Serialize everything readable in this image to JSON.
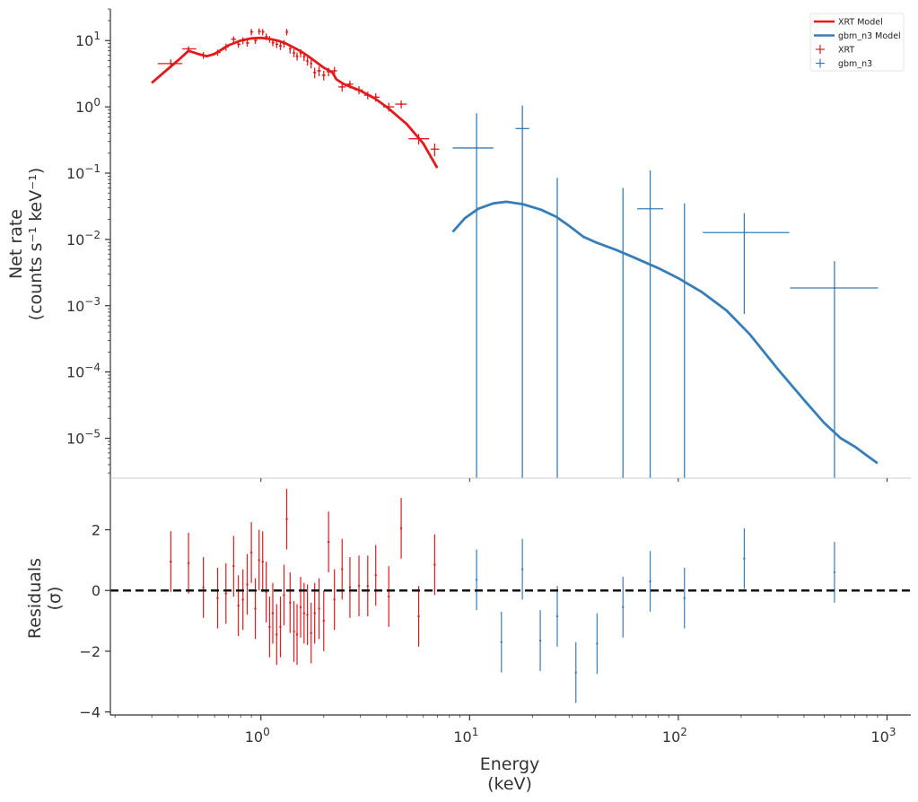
{
  "chart_data": {
    "type": "scatter",
    "x_scale": "log",
    "xlim": [
      0.19,
      1300
    ],
    "xlabel_line1": "Energy",
    "xlabel_line2": "(keV)",
    "x_ticks": [
      {
        "value": 1,
        "base": "10",
        "exp": "0"
      },
      {
        "value": 10,
        "base": "10",
        "exp": "1"
      },
      {
        "value": 100,
        "base": "10",
        "exp": "2"
      },
      {
        "value": 1000,
        "base": "10",
        "exp": "3"
      }
    ],
    "top_panel": {
      "y_scale": "log",
      "ylim": [
        2.5e-06,
        30
      ],
      "ylabel_line1": "Net rate",
      "ylabel_line2": "(counts s⁻¹ keV⁻¹)",
      "y_ticks": [
        {
          "value": 10,
          "base": "10",
          "exp": "1"
        },
        {
          "value": 1,
          "base": "10",
          "exp": "0"
        },
        {
          "value": 0.1,
          "base": "10",
          "exp": "−1"
        },
        {
          "value": 0.01,
          "base": "10",
          "exp": "−2"
        },
        {
          "value": 0.001,
          "base": "10",
          "exp": "−3"
        },
        {
          "value": 0.0001,
          "base": "10",
          "exp": "−4"
        },
        {
          "value": 1e-05,
          "base": "10",
          "exp": "−5"
        }
      ]
    },
    "bottom_panel": {
      "y_scale": "linear",
      "ylim": [
        -4.1,
        3.7
      ],
      "ylabel_line1": "Residuals",
      "ylabel_line2": "(σ)",
      "y_ticks": [
        {
          "value": 2,
          "label": "2"
        },
        {
          "value": 0,
          "label": "0"
        },
        {
          "value": -2,
          "label": "−2"
        },
        {
          "value": -4,
          "label": "−4"
        }
      ],
      "reference_line": 0
    },
    "legend": {
      "placement": "top-right",
      "entries": [
        {
          "label": "XRT Model",
          "kind": "line",
          "color": "#e31a1c"
        },
        {
          "label": "gbm_n3 Model",
          "kind": "line",
          "color": "#377eb8"
        },
        {
          "label": "XRT",
          "kind": "marker",
          "color": "#e31a1c"
        },
        {
          "label": "gbm_n3",
          "kind": "marker",
          "color": "#377eb8"
        }
      ]
    },
    "series": [
      {
        "name": "XRT Model",
        "kind": "model",
        "color": "#e31a1c",
        "x": [
          0.3,
          0.35,
          0.4,
          0.45,
          0.5,
          0.55,
          0.6,
          0.7,
          0.8,
          0.9,
          1.0,
          1.1,
          1.2,
          1.3,
          1.4,
          1.5,
          1.6,
          1.7,
          1.8,
          1.9,
          2.0,
          2.1,
          2.2,
          2.3,
          2.5,
          2.7,
          3.0,
          3.5,
          4.0,
          5.0,
          6.0,
          7.0
        ],
        "y": [
          2.3,
          3.5,
          5.0,
          7.0,
          6.3,
          5.8,
          6.3,
          8.5,
          10.0,
          10.8,
          11.0,
          10.6,
          10.0,
          9.2,
          8.2,
          7.3,
          6.5,
          5.7,
          5.0,
          4.4,
          3.9,
          3.6,
          3.3,
          2.6,
          2.2,
          2.0,
          1.75,
          1.35,
          1.0,
          0.55,
          0.28,
          0.12
        ]
      },
      {
        "name": "gbm_n3 Model",
        "kind": "model",
        "color": "#377eb8",
        "x": [
          8.3,
          9.5,
          11,
          13,
          15,
          18,
          22,
          26,
          30,
          35,
          40,
          50,
          60,
          80,
          100,
          130,
          170,
          220,
          300,
          400,
          500,
          600,
          700,
          800,
          900
        ],
        "y": [
          0.013,
          0.021,
          0.029,
          0.035,
          0.037,
          0.034,
          0.028,
          0.022,
          0.016,
          0.011,
          0.0091,
          0.007,
          0.0055,
          0.0037,
          0.0026,
          0.0016,
          0.00085,
          0.00037,
          0.00011,
          3.8e-05,
          1.7e-05,
          1e-05,
          7.5e-06,
          5.5e-06,
          4.2e-06
        ]
      },
      {
        "name": "XRT",
        "kind": "data",
        "color": "#e31a1c",
        "points": [
          {
            "x": 0.37,
            "xlo": 0.32,
            "xhi": 0.42,
            "y": 4.5,
            "ylo": 3.8,
            "yhi": 5.2,
            "r": 0.95,
            "rerr": 1.0
          },
          {
            "x": 0.45,
            "xlo": 0.42,
            "xhi": 0.49,
            "y": 7.5,
            "ylo": 6.8,
            "yhi": 8.2,
            "r": 0.9,
            "rerr": 1.0
          },
          {
            "x": 0.53,
            "xlo": 0.51,
            "xhi": 0.55,
            "y": 6.0,
            "ylo": 5.3,
            "yhi": 6.7,
            "r": 0.1,
            "rerr": 1.0
          },
          {
            "x": 0.62,
            "xlo": 0.6,
            "xhi": 0.64,
            "y": 6.6,
            "ylo": 5.9,
            "yhi": 7.3,
            "r": -0.25,
            "rerr": 1.0
          },
          {
            "x": 0.68,
            "xlo": 0.66,
            "xhi": 0.7,
            "y": 8.0,
            "ylo": 7.0,
            "yhi": 9.0,
            "r": -0.1,
            "rerr": 1.0
          },
          {
            "x": 0.74,
            "xlo": 0.72,
            "xhi": 0.76,
            "y": 10.5,
            "ylo": 9.4,
            "yhi": 11.6,
            "r": 0.8,
            "rerr": 1.0
          },
          {
            "x": 0.78,
            "xlo": 0.77,
            "xhi": 0.8,
            "y": 8.8,
            "ylo": 7.8,
            "yhi": 9.8,
            "r": -0.5,
            "rerr": 1.0
          },
          {
            "x": 0.82,
            "xlo": 0.81,
            "xhi": 0.84,
            "y": 10.0,
            "ylo": 8.8,
            "yhi": 11.2,
            "r": -0.3,
            "rerr": 1.0
          },
          {
            "x": 0.86,
            "xlo": 0.85,
            "xhi": 0.88,
            "y": 9.2,
            "ylo": 8.1,
            "yhi": 10.3,
            "r": 0.2,
            "rerr": 1.0
          },
          {
            "x": 0.9,
            "xlo": 0.89,
            "xhi": 0.92,
            "y": 13.5,
            "ylo": 12.0,
            "yhi": 15.0,
            "r": 1.25,
            "rerr": 1.0
          },
          {
            "x": 0.94,
            "xlo": 0.93,
            "xhi": 0.96,
            "y": 10.0,
            "ylo": 8.9,
            "yhi": 11.1,
            "r": -0.6,
            "rerr": 1.0
          },
          {
            "x": 0.98,
            "xlo": 0.97,
            "xhi": 1.0,
            "y": 13.8,
            "ylo": 12.3,
            "yhi": 15.3,
            "r": 1.0,
            "rerr": 1.0
          },
          {
            "x": 1.02,
            "xlo": 1.01,
            "xhi": 1.04,
            "y": 13.5,
            "ylo": 12.0,
            "yhi": 15.0,
            "r": 0.95,
            "rerr": 1.0
          },
          {
            "x": 1.06,
            "xlo": 1.05,
            "xhi": 1.08,
            "y": 11.5,
            "ylo": 10.2,
            "yhi": 12.8,
            "r": -0.05,
            "rerr": 1.0
          },
          {
            "x": 1.1,
            "xlo": 1.09,
            "xhi": 1.12,
            "y": 10.5,
            "ylo": 9.3,
            "yhi": 11.7,
            "r": -1.2,
            "rerr": 1.0
          },
          {
            "x": 1.14,
            "xlo": 1.13,
            "xhi": 1.16,
            "y": 9.3,
            "ylo": 8.2,
            "yhi": 10.4,
            "r": -0.75,
            "rerr": 1.0
          },
          {
            "x": 1.19,
            "xlo": 1.18,
            "xhi": 1.21,
            "y": 8.8,
            "ylo": 7.7,
            "yhi": 9.9,
            "r": -1.45,
            "rerr": 1.0
          },
          {
            "x": 1.24,
            "xlo": 1.22,
            "xhi": 1.26,
            "y": 8.3,
            "ylo": 7.2,
            "yhi": 9.4,
            "r": -1.2,
            "rerr": 1.0
          },
          {
            "x": 1.29,
            "xlo": 1.27,
            "xhi": 1.31,
            "y": 9.0,
            "ylo": 7.8,
            "yhi": 10.2,
            "r": -0.15,
            "rerr": 1.0
          },
          {
            "x": 1.33,
            "xlo": 1.32,
            "xhi": 1.35,
            "y": 13.5,
            "ylo": 12.0,
            "yhi": 15.0,
            "r": 2.35,
            "rerr": 1.0
          },
          {
            "x": 1.38,
            "xlo": 1.37,
            "xhi": 1.4,
            "y": 7.5,
            "ylo": 6.4,
            "yhi": 8.6,
            "r": -0.4,
            "rerr": 1.0
          },
          {
            "x": 1.44,
            "xlo": 1.42,
            "xhi": 1.46,
            "y": 6.5,
            "ylo": 5.6,
            "yhi": 7.4,
            "r": -1.35,
            "rerr": 1.0
          },
          {
            "x": 1.49,
            "xlo": 1.47,
            "xhi": 1.51,
            "y": 5.8,
            "ylo": 5.0,
            "yhi": 6.6,
            "r": -1.45,
            "rerr": 1.0
          },
          {
            "x": 1.55,
            "xlo": 1.53,
            "xhi": 1.57,
            "y": 6.5,
            "ylo": 5.6,
            "yhi": 7.4,
            "r": -0.55,
            "rerr": 1.0
          },
          {
            "x": 1.61,
            "xlo": 1.59,
            "xhi": 1.63,
            "y": 5.7,
            "ylo": 4.9,
            "yhi": 6.5,
            "r": -0.75,
            "rerr": 1.0
          },
          {
            "x": 1.67,
            "xlo": 1.65,
            "xhi": 1.69,
            "y": 4.9,
            "ylo": 4.2,
            "yhi": 5.6,
            "r": -0.8,
            "rerr": 1.0
          },
          {
            "x": 1.74,
            "xlo": 1.72,
            "xhi": 1.76,
            "y": 4.5,
            "ylo": 3.8,
            "yhi": 5.2,
            "r": -1.4,
            "rerr": 1.0
          },
          {
            "x": 1.81,
            "xlo": 1.78,
            "xhi": 1.84,
            "y": 3.3,
            "ylo": 2.7,
            "yhi": 3.9,
            "r": -0.75,
            "rerr": 1.0
          },
          {
            "x": 1.9,
            "xlo": 1.86,
            "xhi": 1.94,
            "y": 3.5,
            "ylo": 2.9,
            "yhi": 4.1,
            "r": -0.6,
            "rerr": 1.0
          },
          {
            "x": 2.0,
            "xlo": 1.96,
            "xhi": 2.04,
            "y": 3.0,
            "ylo": 2.5,
            "yhi": 3.5,
            "r": -1.0,
            "rerr": 1.0
          },
          {
            "x": 2.11,
            "xlo": 2.06,
            "xhi": 2.16,
            "y": 3.4,
            "ylo": 2.9,
            "yhi": 3.9,
            "r": 1.6,
            "rerr": 1.0
          },
          {
            "x": 2.25,
            "xlo": 2.18,
            "xhi": 2.32,
            "y": 3.5,
            "ylo": 3.0,
            "yhi": 4.0,
            "r": -0.3,
            "rerr": 1.0
          },
          {
            "x": 2.45,
            "xlo": 2.35,
            "xhi": 2.55,
            "y": 2.0,
            "ylo": 1.7,
            "yhi": 2.3,
            "r": 0.7,
            "rerr": 1.0
          },
          {
            "x": 2.67,
            "xlo": 2.58,
            "xhi": 2.77,
            "y": 2.2,
            "ylo": 1.9,
            "yhi": 2.5,
            "r": 0.1,
            "rerr": 1.0
          },
          {
            "x": 2.95,
            "xlo": 2.82,
            "xhi": 3.08,
            "y": 1.8,
            "ylo": 1.55,
            "yhi": 2.05,
            "r": 0.15,
            "rerr": 1.0
          },
          {
            "x": 3.25,
            "xlo": 3.12,
            "xhi": 3.38,
            "y": 1.5,
            "ylo": 1.3,
            "yhi": 1.7,
            "r": 0.15,
            "rerr": 1.0
          },
          {
            "x": 3.55,
            "xlo": 3.42,
            "xhi": 3.7,
            "y": 1.4,
            "ylo": 1.2,
            "yhi": 1.6,
            "r": 0.5,
            "rerr": 1.0
          },
          {
            "x": 4.1,
            "xlo": 3.85,
            "xhi": 4.35,
            "y": 1.0,
            "ylo": 0.85,
            "yhi": 1.15,
            "r": -0.2,
            "rerr": 1.0
          },
          {
            "x": 4.7,
            "xlo": 4.4,
            "xhi": 5.0,
            "y": 1.1,
            "ylo": 0.95,
            "yhi": 1.25,
            "r": 2.05,
            "rerr": 1.0
          },
          {
            "x": 5.7,
            "xlo": 5.1,
            "xhi": 6.4,
            "y": 0.33,
            "ylo": 0.27,
            "yhi": 0.39,
            "r": -0.85,
            "rerr": 1.0
          },
          {
            "x": 6.8,
            "xlo": 6.5,
            "xhi": 7.15,
            "y": 0.23,
            "ylo": 0.18,
            "yhi": 0.28,
            "r": 0.85,
            "rerr": 1.0
          }
        ]
      },
      {
        "name": "gbm_n3",
        "kind": "data",
        "color": "#377eb8",
        "points": [
          {
            "x": 10.8,
            "xlo": 8.3,
            "xhi": 13.0,
            "y": 0.24,
            "ylo": 1e-07,
            "yhi": 0.8,
            "r": 0.35,
            "rerr": 1.0
          },
          {
            "x": 14.2,
            "xlo": 14.2,
            "xhi": 14.2,
            "y": null,
            "ylo": null,
            "yhi": null,
            "r": -1.7,
            "rerr": 1.0
          },
          {
            "x": 17.9,
            "xlo": 16.6,
            "xhi": 19.3,
            "y": 0.47,
            "ylo": 1e-07,
            "yhi": 1.05,
            "r": 0.7,
            "rerr": 1.0
          },
          {
            "x": 21.8,
            "xlo": 21.8,
            "xhi": 21.8,
            "y": null,
            "ylo": null,
            "yhi": null,
            "r": -1.65,
            "rerr": 1.0
          },
          {
            "x": 26.3,
            "xlo": 26.3,
            "xhi": 26.3,
            "y": null,
            "ylo": 1e-07,
            "yhi": 0.085,
            "r": -0.85,
            "rerr": 1.0
          },
          {
            "x": 32.3,
            "xlo": 32.3,
            "xhi": 32.3,
            "y": null,
            "ylo": null,
            "yhi": null,
            "r": -2.7,
            "rerr": 1.0
          },
          {
            "x": 40.8,
            "xlo": 40.8,
            "xhi": 40.8,
            "y": null,
            "ylo": null,
            "yhi": null,
            "r": -1.75,
            "rerr": 1.0
          },
          {
            "x": 54.3,
            "xlo": 54.3,
            "xhi": 54.3,
            "y": null,
            "ylo": 1e-07,
            "yhi": 0.06,
            "r": -0.55,
            "rerr": 1.0
          },
          {
            "x": 73.3,
            "xlo": 63.5,
            "xhi": 84.6,
            "y": 0.029,
            "ylo": 1e-07,
            "yhi": 0.11,
            "r": 0.3,
            "rerr": 1.0
          },
          {
            "x": 107,
            "xlo": 107,
            "xhi": 107,
            "y": null,
            "ylo": 1e-07,
            "yhi": 0.035,
            "r": -0.25,
            "rerr": 1.0
          },
          {
            "x": 207,
            "xlo": 131,
            "xhi": 340,
            "y": 0.0127,
            "ylo": 0.00075,
            "yhi": 0.025,
            "r": 1.05,
            "rerr": 1.0
          },
          {
            "x": 560,
            "xlo": 343,
            "xhi": 905,
            "y": 0.00185,
            "ylo": 1e-07,
            "yhi": 0.0047,
            "r": 0.6,
            "rerr": 1.0
          }
        ]
      }
    ]
  }
}
